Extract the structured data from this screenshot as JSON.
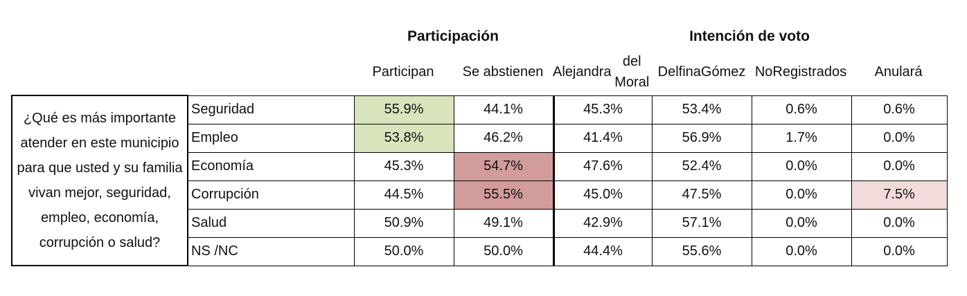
{
  "chart_data": {
    "type": "table",
    "group_headers": {
      "participacion": "Participación",
      "intencion": "Intención de voto"
    },
    "columns": [
      "Participan",
      "Se abstienen",
      "Alejandra del Moral",
      "Delfina Gómez",
      "No Registrados",
      "Anulará"
    ],
    "column_lines": [
      [
        "Participan"
      ],
      [
        "Se abstienen"
      ],
      [
        "Alejandra",
        "del Moral"
      ],
      [
        "Delfina",
        "Gómez"
      ],
      [
        "No",
        "Registrados"
      ],
      [
        "Anulará"
      ]
    ],
    "question": "¿Qué es más importante atender en este municipio para que usted y su familia vivan mejor, seguridad, empleo, economía, corrupción o salud?",
    "rows": [
      {
        "category": "Seguridad",
        "values": [
          "55.9%",
          "44.1%",
          "45.3%",
          "53.4%",
          "0.6%",
          "0.6%"
        ]
      },
      {
        "category": "Empleo",
        "values": [
          "53.8%",
          "46.2%",
          "41.4%",
          "56.9%",
          "1.7%",
          "0.0%"
        ]
      },
      {
        "category": "Economía",
        "values": [
          "45.3%",
          "54.7%",
          "47.6%",
          "52.4%",
          "0.0%",
          "0.0%"
        ]
      },
      {
        "category": "Corrupción",
        "values": [
          "44.5%",
          "55.5%",
          "45.0%",
          "47.5%",
          "0.0%",
          "7.5%"
        ]
      },
      {
        "category": "Salud",
        "values": [
          "50.9%",
          "49.1%",
          "42.9%",
          "57.1%",
          "0.0%",
          "0.0%"
        ]
      },
      {
        "category": "NS /NC",
        "values": [
          "50.0%",
          "50.0%",
          "44.4%",
          "55.6%",
          "0.0%",
          "0.0%"
        ]
      }
    ],
    "highlights": [
      {
        "row": 0,
        "col": 0,
        "color": "#d8e4bc"
      },
      {
        "row": 1,
        "col": 0,
        "color": "#d8e4bc"
      },
      {
        "row": 2,
        "col": 1,
        "color": "#d19c9a"
      },
      {
        "row": 3,
        "col": 1,
        "color": "#d19c9a"
      },
      {
        "row": 3,
        "col": 5,
        "color": "#f1dcdb"
      }
    ]
  }
}
